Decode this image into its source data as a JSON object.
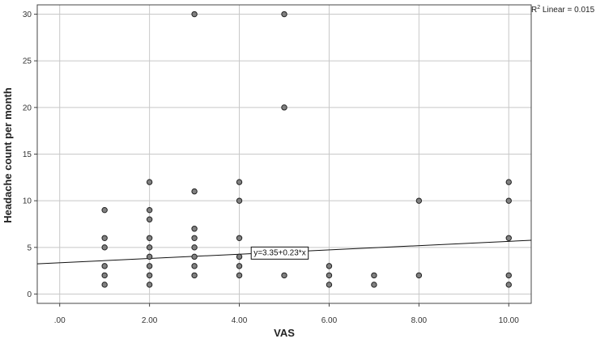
{
  "chart_data": {
    "type": "scatter",
    "xlabel": "VAS",
    "ylabel": "Headache count per month",
    "xlim": [
      -0.5,
      10.5
    ],
    "ylim": [
      -1,
      31
    ],
    "x_ticks": [
      0,
      2,
      4,
      6,
      8,
      10
    ],
    "x_tick_labels": [
      ".00",
      "2.00",
      "4.00",
      "6.00",
      "8.00",
      "10.00"
    ],
    "y_ticks": [
      0,
      5,
      10,
      15,
      20,
      25,
      30
    ],
    "y_tick_labels": [
      "0",
      "5",
      "10",
      "15",
      "20",
      "25",
      "30"
    ],
    "grid": true,
    "point_color": "#808080",
    "points": [
      {
        "x": 1,
        "y": 1
      },
      {
        "x": 1,
        "y": 2
      },
      {
        "x": 1,
        "y": 3
      },
      {
        "x": 1,
        "y": 5
      },
      {
        "x": 1,
        "y": 6
      },
      {
        "x": 1,
        "y": 9
      },
      {
        "x": 2,
        "y": 1
      },
      {
        "x": 2,
        "y": 2
      },
      {
        "x": 2,
        "y": 3
      },
      {
        "x": 2,
        "y": 4
      },
      {
        "x": 2,
        "y": 5
      },
      {
        "x": 2,
        "y": 6
      },
      {
        "x": 2,
        "y": 8
      },
      {
        "x": 2,
        "y": 9
      },
      {
        "x": 2,
        "y": 12
      },
      {
        "x": 3,
        "y": 2
      },
      {
        "x": 3,
        "y": 3
      },
      {
        "x": 3,
        "y": 4
      },
      {
        "x": 3,
        "y": 5
      },
      {
        "x": 3,
        "y": 6
      },
      {
        "x": 3,
        "y": 7
      },
      {
        "x": 3,
        "y": 11
      },
      {
        "x": 3,
        "y": 30
      },
      {
        "x": 4,
        "y": 2
      },
      {
        "x": 4,
        "y": 3
      },
      {
        "x": 4,
        "y": 4
      },
      {
        "x": 4,
        "y": 6
      },
      {
        "x": 4,
        "y": 10
      },
      {
        "x": 4,
        "y": 12
      },
      {
        "x": 5,
        "y": 2
      },
      {
        "x": 5,
        "y": 20
      },
      {
        "x": 5,
        "y": 30
      },
      {
        "x": 6,
        "y": 1
      },
      {
        "x": 6,
        "y": 2
      },
      {
        "x": 6,
        "y": 3
      },
      {
        "x": 7,
        "y": 1
      },
      {
        "x": 7,
        "y": 2
      },
      {
        "x": 8,
        "y": 2
      },
      {
        "x": 8,
        "y": 10
      },
      {
        "x": 10,
        "y": 1
      },
      {
        "x": 10,
        "y": 2
      },
      {
        "x": 10,
        "y": 6
      },
      {
        "x": 10,
        "y": 10
      },
      {
        "x": 10,
        "y": 12
      }
    ],
    "fit_line": {
      "intercept": 3.35,
      "slope": 0.23,
      "label": "y=3.35+0.23*x",
      "label_at_x": 4.9
    },
    "r2_label": {
      "prefix": "R",
      "sup": "2",
      "text": " Linear = 0.015"
    }
  }
}
